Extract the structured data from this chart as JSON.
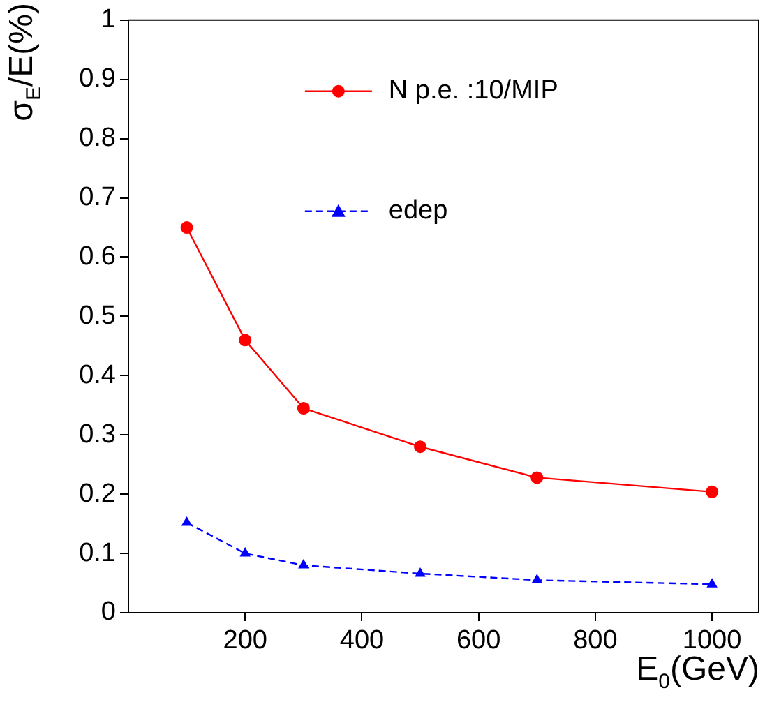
{
  "chart_data": {
    "type": "line",
    "xlabel": "E$_{0}$(GeV)",
    "ylabel": "σ$_{E}$/E(%)",
    "x": [
      100,
      200,
      300,
      500,
      700,
      1000
    ],
    "series": [
      {
        "name": "N p.e. :10/MIP",
        "color": "#ff0000",
        "marker": "circle",
        "line_style": "solid",
        "values": [
          0.65,
          0.46,
          0.345,
          0.28,
          0.228,
          0.204
        ]
      },
      {
        "name": "edep",
        "color": "#0000ff",
        "marker": "triangle",
        "line_style": "dashed",
        "values": [
          0.152,
          0.1,
          0.08,
          0.066,
          0.055,
          0.048
        ]
      }
    ],
    "xlim": [
      0,
      1080
    ],
    "xticks": [
      200,
      400,
      600,
      800,
      1000
    ],
    "ylim": [
      0,
      1
    ],
    "yticks": [
      0,
      0.1,
      0.2,
      0.3,
      0.4,
      0.5,
      0.6,
      0.7,
      0.8,
      0.9,
      1
    ],
    "grid": false,
    "legend": "top"
  }
}
